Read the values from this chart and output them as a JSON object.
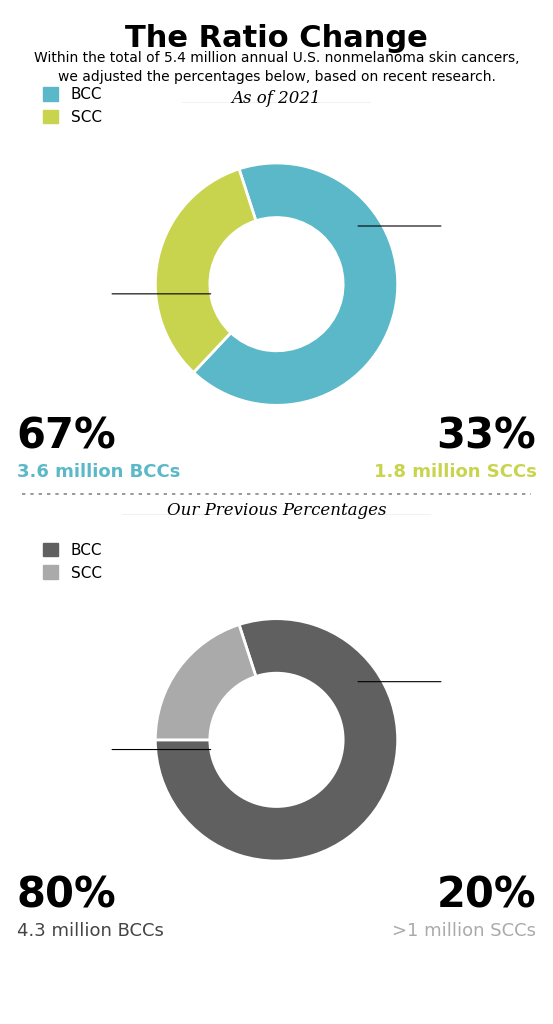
{
  "title": "The Ratio Change",
  "subtitle_line1": "Within the total of 5.4 million annual U.S. nonmelanoma skin cancers,",
  "subtitle_line2": "we adjusted the percentages below, based on recent research.",
  "chart1_label": "As of 2021",
  "chart1_values": [
    67,
    33
  ],
  "chart1_colors": [
    "#5BB8C8",
    "#C8D44E"
  ],
  "chart1_legend": [
    "BCC",
    "SCC"
  ],
  "chart1_pct_left": "67%",
  "chart1_pct_right": "33%",
  "chart1_sub_left": "3.6 million BCCs",
  "chart1_sub_right": "1.8 million SCCs",
  "chart1_sub_left_color": "#5BB8C8",
  "chart1_sub_right_color": "#C8D44E",
  "chart2_label": "Our Previous Percentages",
  "chart2_values": [
    80,
    20
  ],
  "chart2_colors": [
    "#606060",
    "#AAAAAA"
  ],
  "chart2_legend": [
    "BCC",
    "SCC"
  ],
  "chart2_pct_left": "80%",
  "chart2_pct_right": "20%",
  "chart2_sub_left": "4.3 million BCCs",
  "chart2_sub_right": ">1 million SCCs",
  "chart2_sub_left_color": "#444444",
  "chart2_sub_right_color": "#AAAAAA",
  "bg_color": "#FFFFFF"
}
